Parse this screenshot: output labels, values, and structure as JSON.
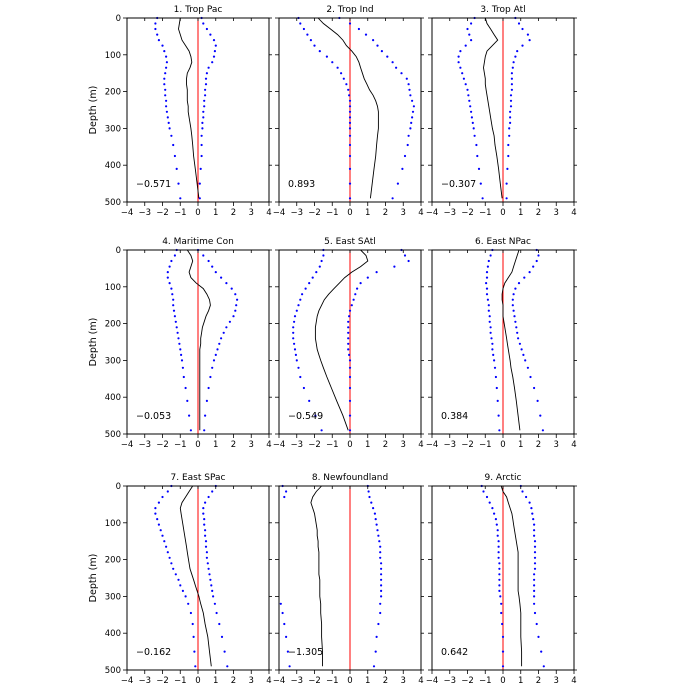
{
  "chart_data": {
    "type": "line",
    "layout": "3x3 small multiples",
    "shared_axes": {
      "xlim": [
        -4,
        4
      ],
      "xticks": [
        -4,
        -3,
        -2,
        -1,
        0,
        1,
        2,
        3,
        4
      ],
      "ylim": [
        0,
        500
      ],
      "y_inverted": true,
      "yticks": [
        0,
        100,
        200,
        300,
        400,
        500
      ],
      "ylabel": "Depth (m)",
      "zero_line_color": "#ff0000",
      "mean_line_color": "#000000",
      "spread_dot_color": "#0000ff"
    },
    "depths": [
      0,
      15,
      30,
      45,
      60,
      75,
      90,
      105,
      120,
      135,
      150,
      165,
      180,
      195,
      210,
      225,
      240,
      255,
      270,
      285,
      300,
      320,
      345,
      375,
      410,
      450,
      490
    ],
    "panels": [
      {
        "title": "1. Trop Pac",
        "stat": "-0.571",
        "mean": [
          -1.0,
          -1.05,
          -1.1,
          -1.0,
          -0.9,
          -0.7,
          -0.5,
          -0.4,
          -0.35,
          -0.45,
          -0.6,
          -0.65,
          -0.65,
          -0.6,
          -0.6,
          -0.6,
          -0.55,
          -0.55,
          -0.5,
          -0.45,
          -0.4,
          -0.35,
          -0.3,
          -0.25,
          -0.15,
          -0.05,
          0.05
        ],
        "lower": [
          -2.3,
          -2.4,
          -2.4,
          -2.3,
          -2.2,
          -2.0,
          -1.9,
          -1.8,
          -1.75,
          -1.8,
          -1.85,
          -1.9,
          -1.9,
          -1.85,
          -1.85,
          -1.8,
          -1.8,
          -1.75,
          -1.7,
          -1.65,
          -1.6,
          -1.5,
          -1.4,
          -1.3,
          -1.2,
          -1.1,
          -1.0
        ],
        "upper": [
          0.2,
          0.3,
          0.5,
          0.7,
          0.9,
          1.0,
          0.95,
          0.9,
          0.8,
          0.6,
          0.5,
          0.45,
          0.45,
          0.4,
          0.4,
          0.35,
          0.35,
          0.3,
          0.3,
          0.25,
          0.25,
          0.2,
          0.2,
          0.2,
          0.15,
          0.1,
          0.1
        ]
      },
      {
        "title": "2. Trop Ind",
        "stat": "0.893",
        "mean": [
          -1.8,
          -1.5,
          -1.1,
          -0.7,
          -0.4,
          -0.2,
          0.1,
          0.35,
          0.5,
          0.6,
          0.7,
          0.8,
          0.95,
          1.1,
          1.3,
          1.45,
          1.55,
          1.6,
          1.6,
          1.6,
          1.6,
          1.55,
          1.5,
          1.45,
          1.35,
          1.25,
          1.15
        ],
        "lower": [
          -2.9,
          -2.8,
          -2.6,
          -2.4,
          -2.2,
          -2.0,
          -1.7,
          -1.3,
          -1.0,
          -0.7,
          -0.5,
          -0.35,
          -0.2,
          -0.1,
          -0.05,
          0.0,
          0.0,
          0.0,
          0.0,
          0.0,
          0.0,
          0.0,
          0.0,
          0.0,
          0.0,
          0.0,
          0.0
        ],
        "upper": [
          -0.6,
          0.0,
          0.5,
          0.9,
          1.3,
          1.55,
          1.8,
          2.1,
          2.4,
          2.6,
          2.9,
          3.2,
          3.3,
          3.35,
          3.4,
          3.5,
          3.6,
          3.55,
          3.5,
          3.45,
          3.4,
          3.3,
          3.25,
          3.1,
          2.95,
          2.7,
          2.4
        ]
      },
      {
        "title": "3. Trop Atl",
        "stat": "-0.307",
        "mean": [
          -1.0,
          -0.9,
          -0.7,
          -0.5,
          -0.3,
          -0.6,
          -0.9,
          -1.0,
          -1.05,
          -1.1,
          -1.05,
          -1.0,
          -1.0,
          -0.95,
          -0.9,
          -0.85,
          -0.8,
          -0.75,
          -0.7,
          -0.65,
          -0.6,
          -0.5,
          -0.45,
          -0.35,
          -0.25,
          -0.15,
          -0.05
        ],
        "lower": [
          -1.6,
          -1.8,
          -2.0,
          -1.9,
          -1.8,
          -2.1,
          -2.4,
          -2.5,
          -2.5,
          -2.4,
          -2.3,
          -2.2,
          -2.1,
          -2.0,
          -1.95,
          -1.9,
          -1.85,
          -1.8,
          -1.75,
          -1.7,
          -1.65,
          -1.6,
          -1.5,
          -1.45,
          -1.35,
          -1.25,
          -1.15
        ],
        "upper": [
          0.7,
          0.9,
          1.1,
          1.4,
          1.5,
          1.1,
          0.8,
          0.7,
          0.6,
          0.55,
          0.5,
          0.5,
          0.5,
          0.5,
          0.45,
          0.45,
          0.45,
          0.4,
          0.4,
          0.4,
          0.35,
          0.35,
          0.3,
          0.3,
          0.25,
          0.2,
          0.2
        ]
      },
      {
        "title": "4. Maritime Con",
        "stat": "-0.053",
        "mean": [
          -0.6,
          -0.4,
          -0.3,
          -0.4,
          -0.5,
          -0.4,
          -0.1,
          0.3,
          0.5,
          0.65,
          0.7,
          0.6,
          0.45,
          0.35,
          0.25,
          0.2,
          0.15,
          0.15,
          0.1,
          0.1,
          0.1,
          0.1,
          0.1,
          0.1,
          0.1,
          0.1,
          0.1
        ],
        "lower": [
          -1.2,
          -1.3,
          -1.5,
          -1.6,
          -1.7,
          -1.7,
          -1.6,
          -1.5,
          -1.45,
          -1.4,
          -1.4,
          -1.35,
          -1.3,
          -1.25,
          -1.2,
          -1.15,
          -1.1,
          -1.05,
          -1.0,
          -0.95,
          -0.9,
          -0.85,
          -0.8,
          -0.7,
          -0.6,
          -0.5,
          -0.4
        ],
        "upper": [
          0.0,
          0.3,
          0.6,
          0.8,
          1.0,
          1.3,
          1.6,
          1.9,
          2.1,
          2.2,
          2.15,
          2.1,
          2.0,
          1.8,
          1.6,
          1.45,
          1.3,
          1.2,
          1.1,
          1.0,
          0.9,
          0.8,
          0.7,
          0.6,
          0.5,
          0.4,
          0.35
        ]
      },
      {
        "title": "5. East SAtl",
        "stat": "-0.549",
        "mean": [
          0.6,
          0.9,
          1.0,
          0.6,
          0.1,
          -0.3,
          -0.6,
          -0.9,
          -1.2,
          -1.45,
          -1.6,
          -1.75,
          -1.85,
          -1.9,
          -1.95,
          -1.95,
          -1.95,
          -1.9,
          -1.85,
          -1.75,
          -1.65,
          -1.5,
          -1.3,
          -1.05,
          -0.75,
          -0.4,
          -0.1
        ],
        "lower": [
          -1.5,
          -1.5,
          -1.6,
          -1.7,
          -1.9,
          -2.1,
          -2.3,
          -2.5,
          -2.7,
          -2.8,
          -2.9,
          -3.0,
          -3.1,
          -3.15,
          -3.2,
          -3.2,
          -3.2,
          -3.15,
          -3.1,
          -3.05,
          -3.0,
          -2.9,
          -2.8,
          -2.6,
          -2.3,
          -1.95,
          -1.6
        ],
        "upper": [
          2.9,
          3.1,
          3.3,
          2.5,
          1.5,
          1.0,
          0.6,
          0.4,
          0.3,
          0.2,
          0.1,
          0.0,
          -0.05,
          -0.1,
          -0.1,
          -0.1,
          -0.1,
          -0.1,
          -0.1,
          -0.05,
          0.0,
          0.0,
          0.0,
          0.0,
          0.0,
          0.0,
          0.0
        ]
      },
      {
        "title": "6. East NPac",
        "stat": "0.384",
        "mean": [
          0.9,
          0.8,
          0.7,
          0.6,
          0.5,
          0.3,
          0.1,
          0.0,
          -0.05,
          -0.05,
          0.0,
          0.0,
          0.0,
          0.05,
          0.1,
          0.15,
          0.2,
          0.25,
          0.3,
          0.35,
          0.4,
          0.45,
          0.55,
          0.65,
          0.75,
          0.85,
          0.95
        ],
        "lower": [
          -0.6,
          -0.7,
          -0.8,
          -0.85,
          -0.9,
          -0.9,
          -0.95,
          -0.9,
          -0.9,
          -0.85,
          -0.8,
          -0.8,
          -0.75,
          -0.75,
          -0.7,
          -0.7,
          -0.65,
          -0.6,
          -0.6,
          -0.55,
          -0.5,
          -0.45,
          -0.4,
          -0.35,
          -0.3,
          -0.25,
          -0.2
        ],
        "upper": [
          1.9,
          2.0,
          1.9,
          1.7,
          1.5,
          1.2,
          0.9,
          0.7,
          0.6,
          0.55,
          0.55,
          0.6,
          0.65,
          0.7,
          0.75,
          0.8,
          0.85,
          0.95,
          1.05,
          1.15,
          1.25,
          1.4,
          1.55,
          1.75,
          1.95,
          2.1,
          2.25
        ]
      },
      {
        "title": "7. East SPac",
        "stat": "-0.162",
        "mean": [
          -0.3,
          -0.5,
          -0.7,
          -0.9,
          -1.0,
          -0.95,
          -0.9,
          -0.85,
          -0.8,
          -0.75,
          -0.7,
          -0.65,
          -0.6,
          -0.55,
          -0.5,
          -0.45,
          -0.35,
          -0.25,
          -0.15,
          -0.05,
          0.05,
          0.15,
          0.3,
          0.4,
          0.55,
          0.65,
          0.75
        ],
        "lower": [
          -1.5,
          -1.7,
          -2.0,
          -2.2,
          -2.4,
          -2.4,
          -2.3,
          -2.2,
          -2.1,
          -2.0,
          -1.9,
          -1.8,
          -1.7,
          -1.6,
          -1.5,
          -1.4,
          -1.25,
          -1.1,
          -1.0,
          -0.85,
          -0.7,
          -0.55,
          -0.4,
          -0.3,
          -0.25,
          -0.2,
          -0.15
        ],
        "upper": [
          1.0,
          0.8,
          0.6,
          0.4,
          0.3,
          0.3,
          0.35,
          0.35,
          0.4,
          0.4,
          0.45,
          0.45,
          0.5,
          0.5,
          0.55,
          0.6,
          0.65,
          0.7,
          0.75,
          0.8,
          0.85,
          0.95,
          1.05,
          1.2,
          1.35,
          1.5,
          1.65
        ]
      },
      {
        "title": "8. Newfoundland",
        "stat": "-1.305",
        "mean": [
          -1.6,
          -1.9,
          -2.1,
          -2.2,
          -2.1,
          -2.0,
          -1.95,
          -1.9,
          -1.85,
          -1.85,
          -1.8,
          -1.8,
          -1.75,
          -1.75,
          -1.75,
          -1.75,
          -1.75,
          -1.7,
          -1.7,
          -1.7,
          -1.7,
          -1.65,
          -1.65,
          -1.6,
          -1.6,
          -1.55,
          -1.55
        ],
        "lower": [
          -3.8,
          -3.6,
          -3.7,
          null,
          null,
          null,
          null,
          null,
          null,
          null,
          null,
          null,
          null,
          null,
          null,
          null,
          null,
          null,
          null,
          null,
          null,
          -3.9,
          -3.8,
          -3.7,
          -3.6,
          -3.5,
          -3.4
        ],
        "upper": [
          1.0,
          1.05,
          1.1,
          1.2,
          1.3,
          1.4,
          1.45,
          1.5,
          1.55,
          1.6,
          1.65,
          1.7,
          1.7,
          1.7,
          1.75,
          1.75,
          1.75,
          1.75,
          1.75,
          1.75,
          1.75,
          1.7,
          1.7,
          1.6,
          1.5,
          1.45,
          1.35
        ]
      },
      {
        "title": "9. Arctic",
        "stat": "0.642",
        "mean": [
          -0.1,
          0.0,
          0.2,
          0.3,
          0.4,
          0.5,
          0.55,
          0.6,
          0.65,
          0.7,
          0.75,
          0.8,
          0.85,
          0.85,
          0.85,
          0.85,
          0.85,
          0.85,
          0.85,
          0.85,
          0.9,
          0.95,
          1.0,
          1.0,
          1.0,
          1.05,
          1.05
        ],
        "lower": [
          -1.2,
          -1.1,
          -0.9,
          -0.75,
          -0.6,
          -0.5,
          -0.4,
          -0.35,
          -0.3,
          -0.3,
          -0.25,
          -0.25,
          -0.25,
          -0.25,
          -0.2,
          -0.2,
          -0.2,
          -0.2,
          -0.2,
          -0.2,
          -0.15,
          -0.1,
          -0.1,
          -0.05,
          0.0,
          0.0,
          0.0
        ],
        "upper": [
          1.0,
          1.1,
          1.3,
          1.5,
          1.6,
          1.65,
          1.7,
          1.75,
          1.75,
          1.75,
          1.8,
          1.8,
          1.8,
          1.8,
          1.8,
          1.8,
          1.75,
          1.75,
          1.75,
          1.75,
          1.75,
          1.75,
          1.8,
          1.9,
          2.0,
          2.15,
          2.3
        ]
      }
    ]
  }
}
